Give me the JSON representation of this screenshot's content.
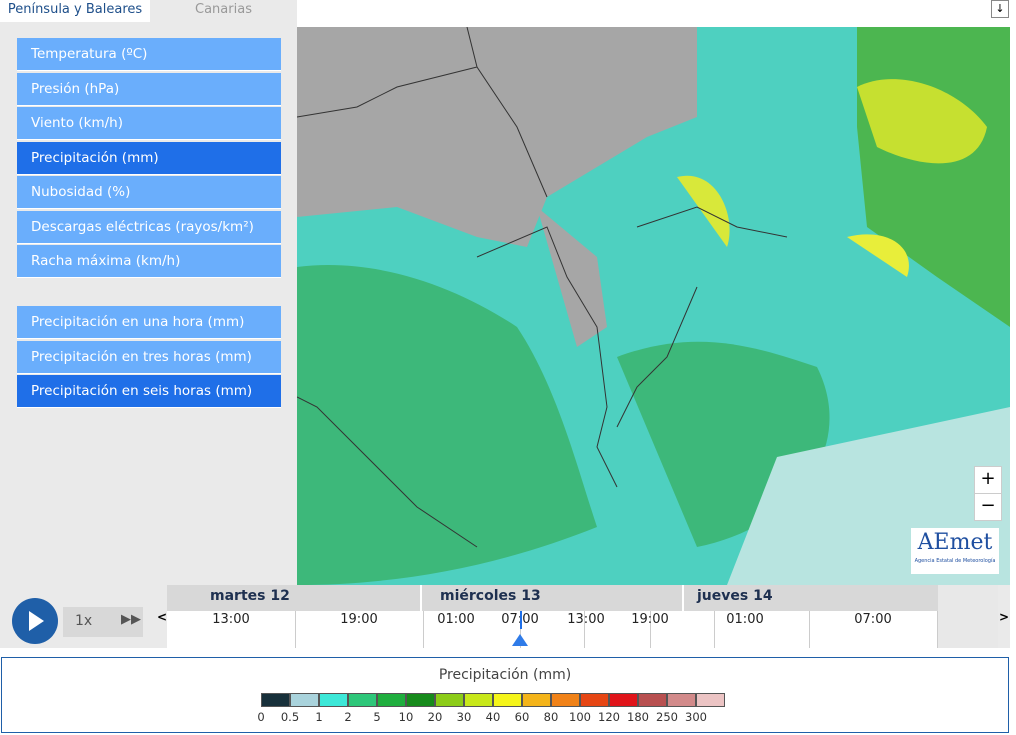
{
  "tabs": {
    "items": [
      "Península y Baleares",
      "Canarias"
    ],
    "active": 0
  },
  "menu": {
    "primary": [
      "Temperatura (ºC)",
      "Presión (hPa)",
      "Viento (km/h)",
      "Precipitación (mm)",
      "Nubosidad (%)",
      "Descargas eléctricas (rayos/km²)",
      "Racha máxima (km/h)"
    ],
    "primary_active": 3,
    "secondary": [
      "Precipitación en una hora (mm)",
      "Precipitación en tres horas (mm)",
      "Precipitación en seis horas (mm)"
    ],
    "secondary_active": 2
  },
  "map": {
    "zoom_in": "+",
    "zoom_out": "−",
    "logo": "AEmet",
    "logo_subtitle": "Agencia Estatal de Meteorología",
    "download": "↓"
  },
  "timeline": {
    "speed": "1x",
    "prev": "<",
    "next": ">",
    "days": [
      "martes 12",
      "miércoles 13",
      "jueves 14"
    ],
    "times": [
      "13:00",
      "19:00",
      "01:00",
      "07:00",
      "13:00",
      "19:00",
      "01:00",
      "07:00"
    ],
    "current": 3
  },
  "legend": {
    "title": "Precipitación (mm)",
    "colors": [
      "#17303a",
      "#a9d3dc",
      "#3de8d8",
      "#2ec77a",
      "#1fae3e",
      "#178b1c",
      "#8ccc18",
      "#c8e81a",
      "#f5f51a",
      "#f4b41a",
      "#f08218",
      "#e64614",
      "#e0141a",
      "#b85050",
      "#d28a8a",
      "#ecc4c4"
    ],
    "labels": [
      "0",
      "0.5",
      "1",
      "2",
      "5",
      "10",
      "20",
      "30",
      "40",
      "60",
      "80",
      "100",
      "120",
      "180",
      "250",
      "300"
    ]
  }
}
